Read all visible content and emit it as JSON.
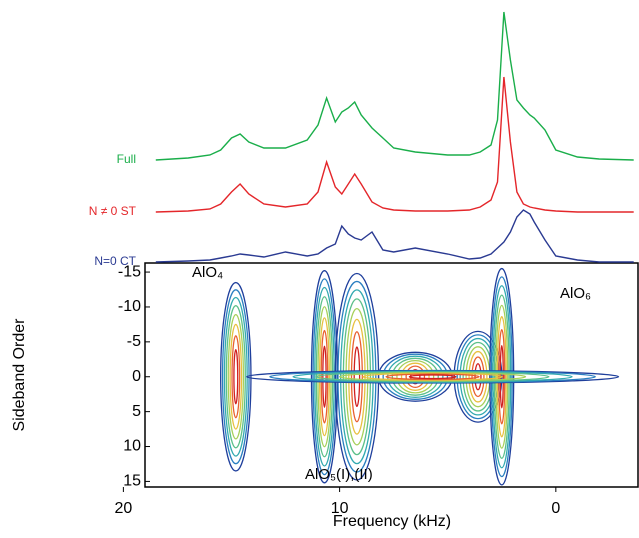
{
  "chart_data": [
    {
      "type": "line",
      "xlim": [
        19,
        -3.8
      ],
      "x": [
        18.5,
        17,
        16,
        15.5,
        15,
        14.6,
        14.2,
        13.5,
        12.5,
        11.5,
        11,
        10.6,
        10.2,
        9.9,
        9.6,
        9.3,
        9,
        8.5,
        8,
        7.5,
        6.5,
        5,
        4,
        3.5,
        3,
        2.7,
        2.4,
        2.1,
        1.8,
        1.5,
        1.2,
        1,
        0.5,
        0,
        -1,
        -2,
        -3.6
      ],
      "series": [
        {
          "name": "Full",
          "color": "#1aae4a",
          "values": [
            0,
            2,
            5,
            10,
            22,
            26,
            18,
            12,
            12,
            20,
            35,
            62,
            38,
            48,
            52,
            58,
            45,
            32,
            22,
            12,
            8,
            5,
            5,
            8,
            15,
            40,
            148,
            100,
            60,
            52,
            45,
            42,
            30,
            10,
            3,
            1,
            0
          ]
        },
        {
          "name": "N ≠ 0 ST",
          "color": "#e4262a",
          "values": [
            0,
            1,
            3,
            8,
            20,
            28,
            18,
            8,
            5,
            8,
            20,
            50,
            25,
            18,
            28,
            38,
            28,
            10,
            4,
            2,
            1,
            1,
            2,
            5,
            12,
            30,
            135,
            70,
            20,
            8,
            5,
            4,
            2,
            1,
            0,
            0,
            0
          ]
        },
        {
          "name": "N=0 CT",
          "color": "#2a3a92",
          "values": [
            0,
            1,
            2,
            4,
            6,
            8,
            7,
            5,
            10,
            6,
            8,
            14,
            18,
            36,
            28,
            24,
            22,
            30,
            12,
            10,
            14,
            8,
            3,
            4,
            8,
            14,
            20,
            30,
            45,
            52,
            48,
            40,
            22,
            6,
            2,
            0,
            0
          ]
        }
      ]
    },
    {
      "type": "contour",
      "xlabel": "Frequency (kHz)",
      "ylabel": "Sideband Order",
      "xlim": [
        19,
        -3.8
      ],
      "ylim": [
        -16.3,
        15.8
      ],
      "xticks": [
        20,
        10,
        0
      ],
      "yticks": [
        -15,
        -10,
        -5,
        0,
        5,
        10,
        15
      ],
      "level_colors": [
        "#1f3f9c",
        "#2a7fc1",
        "#33aab0",
        "#5cc08a",
        "#a6d05a",
        "#e8c040",
        "#e86030",
        "#d02020"
      ],
      "peaks": [
        {
          "x": 14.8,
          "half_width": 0.7,
          "half_height": 13.5
        },
        {
          "x": 10.7,
          "half_width": 0.6,
          "half_height": 15.2
        },
        {
          "x": 9.2,
          "half_width": 1.0,
          "half_height": 14.8
        },
        {
          "x": 6.5,
          "half_width": 1.7,
          "half_height": 3.5
        },
        {
          "x": 3.6,
          "half_width": 1.1,
          "half_height": 6.5
        },
        {
          "x": 2.5,
          "half_width": 0.55,
          "half_height": 15.5
        },
        {
          "x": 5.7,
          "half_width": 8.6,
          "half_height": 0.9
        }
      ],
      "annotations": [
        "AlO₄",
        "AlO₅(I),(II)",
        "AlO₆"
      ]
    }
  ]
}
